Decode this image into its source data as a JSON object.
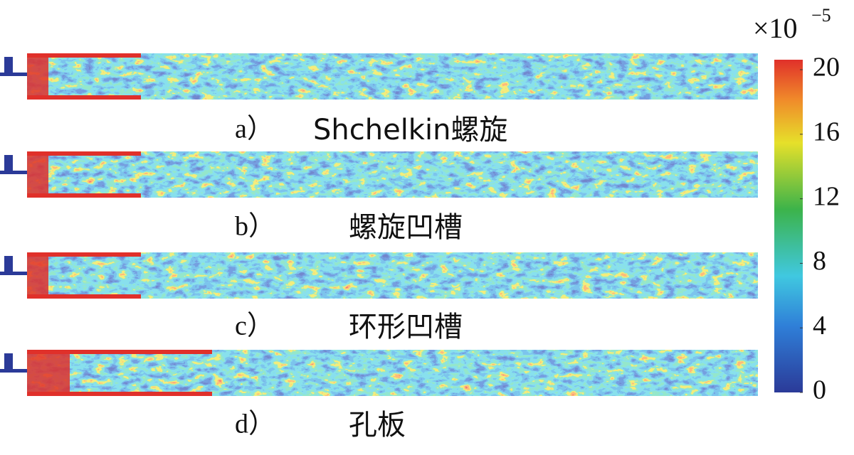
{
  "panels": [
    {
      "label": "a）",
      "caption": "Shchelkin螺旋"
    },
    {
      "label": "b）",
      "caption": "螺旋凹槽"
    },
    {
      "label": "c）",
      "caption": "环形凹槽"
    },
    {
      "label": "d）",
      "caption": "孔板"
    }
  ],
  "colorbar": {
    "multiplier": "×10",
    "exponent": "−5",
    "range": [
      0,
      20
    ],
    "ticks": [
      0,
      4,
      8,
      12,
      16,
      20
    ]
  }
}
